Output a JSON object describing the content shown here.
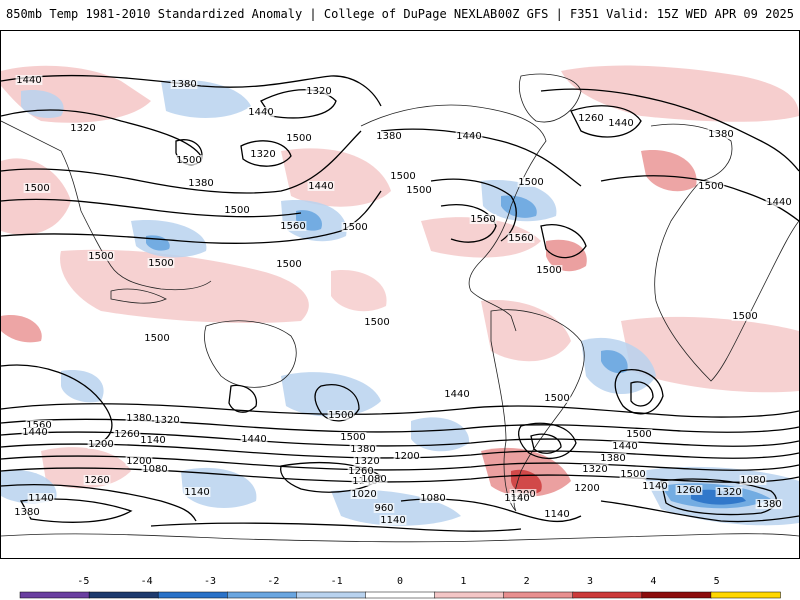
{
  "header": {
    "left_title": "850mb Temp 1981-2010 Standardized Anomaly | College of DuPage NEXLAB",
    "right_title": "00Z GFS | F351 Valid: 15Z WED APR 09 2025"
  },
  "legend": {
    "tick_labels": [
      "-5",
      "-4",
      "-3",
      "-2",
      "-1",
      "0",
      "1",
      "2",
      "3",
      "4",
      "5"
    ],
    "colors": [
      "#6a3fa0",
      "#1d3a6e",
      "#2a72c8",
      "#6aa6e0",
      "#b8d2ee",
      "#ffffff",
      "#f4c6c6",
      "#e88f8f",
      "#cc3a3a",
      "#8c0d0d",
      "#ffd700"
    ]
  },
  "contour_labels": [
    "1440",
    "1380",
    "1320",
    "1320",
    "1260",
    "1440",
    "1380",
    "1440",
    "1500",
    "1320",
    "1500",
    "1500",
    "1380",
    "1440",
    "1440",
    "1500",
    "1560",
    "1500",
    "1380",
    "1560",
    "1560",
    "1500",
    "1500",
    "1500",
    "1500",
    "1500",
    "1500",
    "1500",
    "1500",
    "1500",
    "1500",
    "1440",
    "1440",
    "1560",
    "1440",
    "1380",
    "1320",
    "1260",
    "1140",
    "1200",
    "1440",
    "1500",
    "1380",
    "1320",
    "1260",
    "1140",
    "1200",
    "1200",
    "1260",
    "1080",
    "1140",
    "1080",
    "960",
    "1020",
    "1140",
    "1080",
    "1140",
    "1200",
    "1140",
    "1200",
    "1140",
    "1260",
    "1320",
    "1080",
    "1380",
    "1380",
    "1140",
    "1500",
    "1500",
    "1500",
    "1500",
    "1440",
    "1380",
    "1320",
    "1500"
  ]
}
